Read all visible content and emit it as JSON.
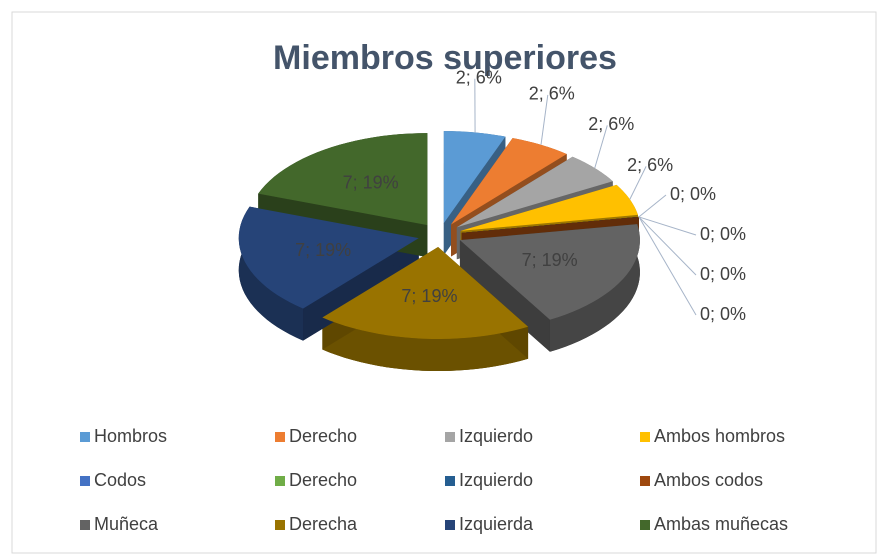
{
  "chart_data": {
    "type": "pie",
    "title": "Miembros superiores",
    "categories": [
      "Hombros",
      "Derecho",
      "Izquierdo",
      "Ambos hombros",
      "Codos",
      "Derecho",
      "Izquierdo",
      "Ambos codos",
      "Muñeca",
      "Derecha",
      "Izquierda",
      "Ambas muñecas"
    ],
    "values": [
      2,
      2,
      2,
      2,
      0,
      0,
      0,
      0,
      7,
      7,
      7,
      7
    ],
    "value_labels": [
      "2; 6%",
      "2; 6%",
      "2; 6%",
      "2; 6%",
      "0; 0%",
      "0; 0%",
      "0; 0%",
      "0; 0%",
      "7; 19%",
      "7; 19%",
      "7; 19%",
      "7; 19%"
    ],
    "colors": [
      "#5b9bd5",
      "#ed7d31",
      "#a5a5a5",
      "#ffc000",
      "#4472c4",
      "#70ad47",
      "#255e91",
      "#9e480e",
      "#636363",
      "#997300",
      "#264478",
      "#43682b"
    ],
    "legend": "bottom"
  }
}
